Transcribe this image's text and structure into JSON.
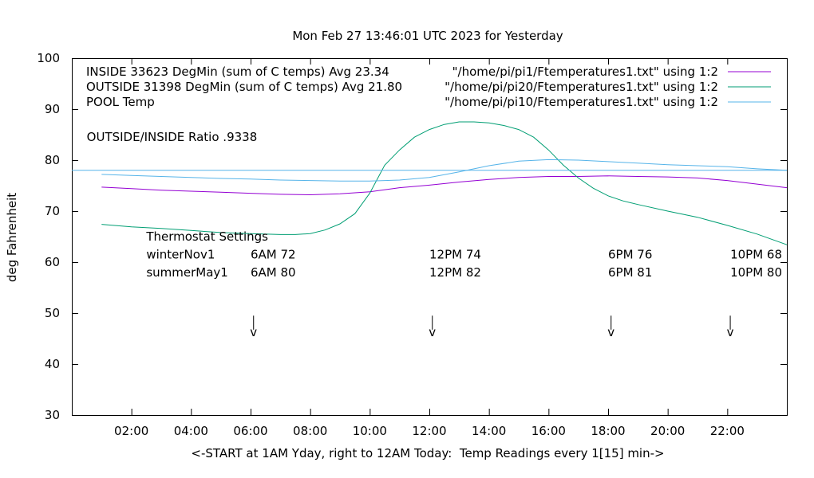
{
  "chart_data": {
    "type": "line",
    "title": "Mon Feb 27 13:46:01 UTC 2023 for Yesterday",
    "xlabel": "<-START at 1AM Yday, right to 12AM Today:  Temp Readings every 1[15] min->",
    "ylabel": "deg Fahrenheit",
    "xlim": [
      0,
      24
    ],
    "ylim": [
      30,
      100
    ],
    "x_ticks": [
      {
        "x": 2,
        "label": "02:00"
      },
      {
        "x": 4,
        "label": "04:00"
      },
      {
        "x": 6,
        "label": "06:00"
      },
      {
        "x": 8,
        "label": "08:00"
      },
      {
        "x": 10,
        "label": "10:00"
      },
      {
        "x": 12,
        "label": "12:00"
      },
      {
        "x": 14,
        "label": "14:00"
      },
      {
        "x": 16,
        "label": "16:00"
      },
      {
        "x": 18,
        "label": "18:00"
      },
      {
        "x": 20,
        "label": "20:00"
      },
      {
        "x": 22,
        "label": "22:00"
      }
    ],
    "y_ticks": [
      30,
      40,
      50,
      60,
      70,
      80,
      90,
      100
    ],
    "legend": {
      "placement": "top",
      "entries": [
        {
          "left": "INSIDE 33623 DegMin (sum of C temps) Avg 23.34",
          "right": "\"/home/pi/pi1/Ftemperatures1.txt\" using 1:2",
          "series": 0
        },
        {
          "left": "OUTSIDE 31398 DegMin (sum of C temps) Avg 21.80",
          "right": "\"/home/pi/pi20/Ftemperatures1.txt\" using 1:2",
          "series": 1
        },
        {
          "left": "POOL Temp",
          "right": "\"/home/pi/pi10/Ftemperatures1.txt\" using 1:2",
          "series": 2
        }
      ]
    },
    "series": [
      {
        "color": "#9400d3",
        "x": [
          1.0,
          2.0,
          3.0,
          4.0,
          5.0,
          6.0,
          7.0,
          8.0,
          9.0,
          10.0,
          11.0,
          12.0,
          13.0,
          14.0,
          15.0,
          16.0,
          17.0,
          18.0,
          19.0,
          20.0,
          21.0,
          22.0,
          23.0,
          24.0
        ],
        "values": [
          74.7,
          74.4,
          74.1,
          73.9,
          73.7,
          73.5,
          73.3,
          73.2,
          73.4,
          73.8,
          74.6,
          75.1,
          75.7,
          76.2,
          76.6,
          76.8,
          76.8,
          76.9,
          76.8,
          76.7,
          76.5,
          76.0,
          75.3,
          74.6
        ]
      },
      {
        "color": "#009e73",
        "x": [
          1.0,
          2.0,
          3.0,
          4.0,
          5.0,
          6.0,
          7.0,
          7.5,
          8.0,
          8.5,
          9.0,
          9.5,
          10.0,
          10.5,
          11.0,
          11.5,
          12.0,
          12.5,
          13.0,
          13.5,
          14.0,
          14.5,
          15.0,
          15.5,
          16.0,
          16.5,
          17.0,
          17.5,
          18.0,
          18.5,
          19.0,
          20.0,
          21.0,
          22.0,
          23.0,
          24.0
        ],
        "values": [
          67.4,
          66.9,
          66.6,
          66.2,
          65.8,
          65.6,
          65.4,
          65.4,
          65.6,
          66.3,
          67.5,
          69.5,
          73.5,
          79.0,
          82.0,
          84.5,
          86.0,
          87.0,
          87.5,
          87.5,
          87.3,
          86.8,
          86.0,
          84.5,
          82.0,
          79.0,
          76.5,
          74.5,
          73.0,
          72.0,
          71.3,
          70.0,
          68.8,
          67.2,
          65.5,
          63.4
        ]
      },
      {
        "color": "#56b4e9",
        "x": [
          1.0,
          2.0,
          3.0,
          4.0,
          5.0,
          6.0,
          7.0,
          8.0,
          9.0,
          10.0,
          11.0,
          12.0,
          13.0,
          14.0,
          15.0,
          16.0,
          17.0,
          18.0,
          19.0,
          20.0,
          21.0,
          22.0,
          23.0,
          24.0
        ],
        "values": [
          77.2,
          77.0,
          76.8,
          76.6,
          76.4,
          76.3,
          76.1,
          76.0,
          75.9,
          75.9,
          76.1,
          76.6,
          77.7,
          78.9,
          79.8,
          80.1,
          80.0,
          79.7,
          79.4,
          79.1,
          78.9,
          78.7,
          78.3,
          78.0
        ]
      },
      {
        "color": "#56b4e9",
        "x": [
          0,
          24
        ],
        "values": [
          78,
          78
        ]
      }
    ],
    "annotations": [
      {
        "text": "OUTSIDE/INSIDE Ratio .9338",
        "x": 0.5,
        "y": 84.5
      },
      {
        "text": "Thermostat Settings",
        "x": 2.5,
        "y": 65
      }
    ],
    "thermostat": {
      "rows": [
        {
          "name": "winterNov1",
          "y": 61.5,
          "entries": [
            "6AM 72",
            "12PM 74",
            "6PM 76",
            "10PM 68"
          ]
        },
        {
          "name": "summerMay1",
          "y": 58.0,
          "entries": [
            "6AM 80",
            "12PM 82",
            "6PM 81",
            "10PM 80"
          ]
        }
      ],
      "entry_x": [
        6.0,
        12.0,
        18.0,
        22.1
      ],
      "name_x": 2.5,
      "marker_x": [
        6.1,
        12.1,
        18.1,
        22.1
      ],
      "marker_y": [
        49.5,
        45.5
      ]
    }
  }
}
